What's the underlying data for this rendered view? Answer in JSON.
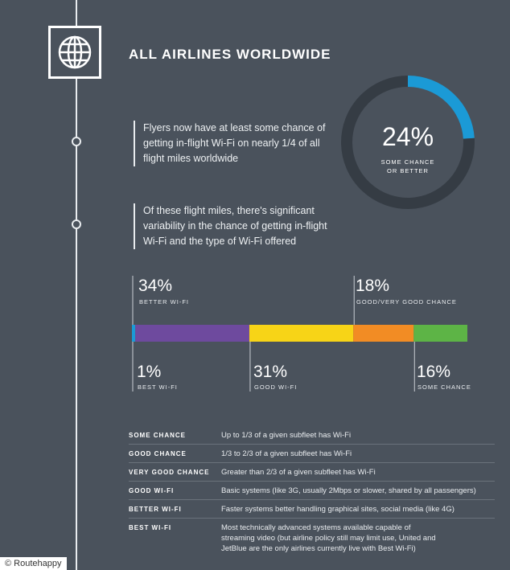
{
  "header": {
    "title": "ALL AIRLINES WORLDWIDE"
  },
  "statements": [
    "Flyers now have at least some chance of getting in-flight Wi-Fi on nearly 1/4 of all flight miles worldwide",
    "Of these flight miles, there's significant variability in the chance of getting in-flight Wi-Fi and the type of Wi-Fi offered"
  ],
  "donut": {
    "percent_label": "24%",
    "label_line1": "SOME CHANCE",
    "label_line2": "OR BETTER"
  },
  "bar_labels": {
    "better": {
      "pct": "34%",
      "label": "BETTER WI-FI"
    },
    "good_very_good": {
      "pct": "18%",
      "label": "GOOD/VERY GOOD CHANCE"
    },
    "best": {
      "pct": "1%",
      "label": "BEST WI-FI"
    },
    "good": {
      "pct": "31%",
      "label": "GOOD WI-FI"
    },
    "some": {
      "pct": "16%",
      "label": "SOME CHANCE"
    }
  },
  "chart_data": [
    {
      "type": "pie",
      "values": [
        24,
        76
      ],
      "categories": [
        "SOME CHANCE OR BETTER",
        ""
      ],
      "colors": [
        "#1b9ad6",
        "#353c44"
      ]
    },
    {
      "type": "bar",
      "orientation": "horizontal-stacked",
      "categories": [
        "BEST WI-FI",
        "BETTER WI-FI",
        "GOOD WI-FI",
        "GOOD/VERY GOOD CHANCE",
        "SOME CHANCE"
      ],
      "values": [
        1,
        34,
        31,
        18,
        16
      ],
      "colors": [
        "#1b9ad6",
        "#6e4a9e",
        "#f7d417",
        "#f28c24",
        "#5db446"
      ]
    }
  ],
  "definitions": [
    {
      "term": "SOME CHANCE",
      "text": "Up to 1/3 of a given subfleet has Wi-Fi"
    },
    {
      "term": "GOOD CHANCE",
      "text": "1/3 to 2/3 of a given subfleet has Wi-Fi"
    },
    {
      "term": "VERY GOOD CHANCE",
      "text": "Greater than 2/3 of a given subfleet has Wi-Fi"
    },
    {
      "term": "GOOD WI-FI",
      "text": "Basic systems (like 3G, usually 2Mbps or slower, shared by all passengers)"
    },
    {
      "term": "BETTER WI-FI",
      "text": "Faster systems better handling graphical sites, social media (like 4G)"
    },
    {
      "term": "BEST WI-FI",
      "text": "Most technically advanced systems available capable of streaming video (but airline policy still may limit use, United and JetBlue are the only airlines currently live with Best Wi-Fi)"
    }
  ],
  "credit": "© Routehappy",
  "icons": {
    "globe": "globe-icon"
  }
}
